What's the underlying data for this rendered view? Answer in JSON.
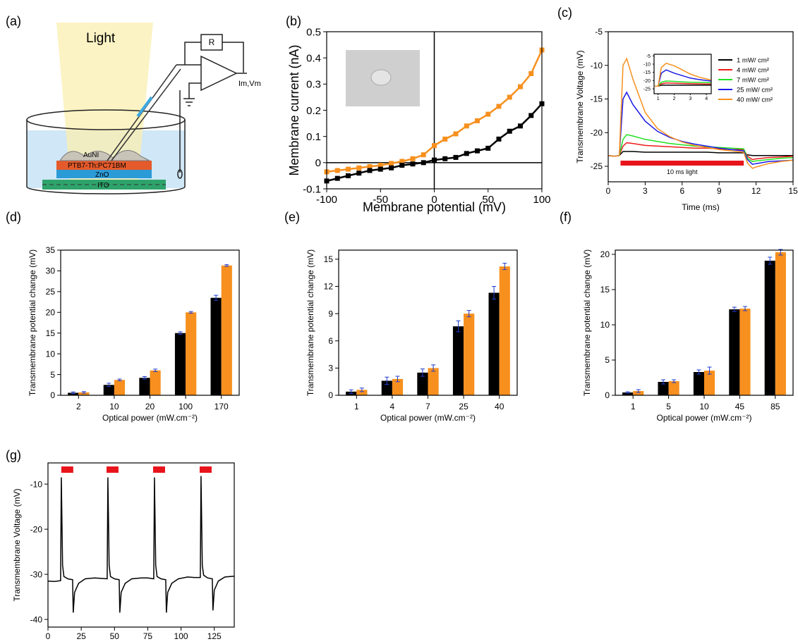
{
  "schematic": {
    "label": "(a)",
    "light": "Light",
    "resistor": "R",
    "output": "Im,Vm",
    "layers": [
      "AuNI",
      "PTB7-Th:PC71BM",
      "ZnO",
      "ITO"
    ]
  },
  "chart_data": [
    {
      "type": "line",
      "label": "(b)",
      "xlabel": "Membrane potential (mV)",
      "ylabel": "Membrane current (nA)",
      "xlim": [
        -100,
        100
      ],
      "ylim": [
        -0.1,
        0.5
      ],
      "xticks": [
        -100,
        -50,
        0,
        50,
        100
      ],
      "yticks": [
        -0.1,
        0.0,
        0.1,
        0.2,
        0.3,
        0.4,
        0.5
      ],
      "marker": "square",
      "x": [
        -100,
        -90,
        -80,
        -70,
        -60,
        -50,
        -40,
        -30,
        -20,
        -10,
        0,
        10,
        20,
        30,
        40,
        50,
        60,
        70,
        80,
        90,
        100
      ],
      "series": [
        {
          "color": "#f7901e",
          "values": [
            -0.035,
            -0.03,
            -0.025,
            -0.02,
            -0.015,
            -0.01,
            -0.003,
            0.005,
            0.015,
            0.03,
            0.065,
            0.09,
            0.11,
            0.14,
            0.16,
            0.185,
            0.215,
            0.25,
            0.29,
            0.34,
            0.43
          ]
        },
        {
          "color": "#000000",
          "values": [
            -0.07,
            -0.06,
            -0.05,
            -0.04,
            -0.03,
            -0.025,
            -0.02,
            -0.01,
            -0.005,
            0.0,
            0.01,
            0.015,
            0.02,
            0.035,
            0.045,
            0.055,
            0.09,
            0.12,
            0.14,
            0.18,
            0.225
          ]
        }
      ]
    },
    {
      "type": "line",
      "label": "(c)",
      "xlabel": "Time (ms)",
      "ylabel": "Transmembrane Voltage (mV)",
      "xlim": [
        0,
        15
      ],
      "ylim": [
        -27.3,
        -5
      ],
      "xticks": [
        0,
        3,
        6,
        9,
        12,
        15
      ],
      "yticks": [
        -25,
        -20,
        -15,
        -10,
        -5
      ],
      "legend": "upper right",
      "light_period": [
        1,
        11
      ],
      "light_label": "10 ms light",
      "light_color": "#e8141c",
      "x": [
        0,
        0.5,
        0.9,
        1.2,
        1.5,
        2,
        3,
        4,
        5,
        6,
        7,
        8,
        9,
        10,
        11,
        11.3,
        11.7,
        12,
        13,
        14,
        15
      ],
      "series": [
        {
          "name": "1 mW/ cm²",
          "color": "#000000",
          "values": [
            -23.4,
            -23.5,
            -23.4,
            -22.8,
            -22.8,
            -22.8,
            -22.9,
            -22.9,
            -22.9,
            -22.9,
            -22.9,
            -22.9,
            -23,
            -23,
            -23,
            -23.3,
            -23.4,
            -23.4,
            -23.4,
            -23.4,
            -23.4
          ]
        },
        {
          "name": "4 mW/ cm²",
          "color": "#ee1c1c",
          "values": [
            -23.4,
            -23.5,
            -23.4,
            -22,
            -21.5,
            -21.6,
            -21.9,
            -22,
            -22.1,
            -22.2,
            -22.3,
            -22.3,
            -22.4,
            -22.5,
            -22.5,
            -23.5,
            -24,
            -23.9,
            -23.7,
            -23.6,
            -23.5
          ]
        },
        {
          "name": "7 mW/ cm²",
          "color": "#22e022",
          "values": [
            -23.4,
            -23.5,
            -23.4,
            -21,
            -20.3,
            -20.5,
            -21,
            -21.3,
            -21.6,
            -21.8,
            -22,
            -22.1,
            -22.2,
            -22.3,
            -22.4,
            -23.8,
            -24.3,
            -24.2,
            -24,
            -23.8,
            -23.7
          ]
        },
        {
          "name": "25 mW/ cm²",
          "color": "#1a1ae6",
          "values": [
            -23.4,
            -23.5,
            -23.4,
            -15,
            -14,
            -15.8,
            -18.3,
            -19.8,
            -20.7,
            -21.3,
            -21.7,
            -22,
            -22.3,
            -22.5,
            -22.7,
            -24,
            -24.7,
            -24.6,
            -24.3,
            -24.2,
            -24.1
          ]
        },
        {
          "name": "40 mW/ cm²",
          "color": "#f7901e",
          "values": [
            -23.4,
            -23.5,
            -23.4,
            -10,
            -9,
            -12,
            -17,
            -19.4,
            -20.6,
            -21.4,
            -21.9,
            -22.2,
            -22.5,
            -22.7,
            -22.9,
            -24.5,
            -25.3,
            -25.1,
            -24.6,
            -24.3,
            -24.1
          ]
        }
      ]
    },
    {
      "type": "line",
      "xlim": [
        0.75,
        4.3
      ],
      "ylim": [
        -28,
        -4
      ],
      "xticks": [
        1,
        2,
        3,
        4
      ],
      "yticks": [
        -25,
        -20,
        -15,
        -10,
        -5
      ],
      "x": [
        0.8,
        1,
        1.2,
        1.5,
        2,
        2.5,
        3,
        3.5,
        4,
        4.3
      ],
      "series": [
        {
          "color": "#000000",
          "values": [
            -23.4,
            -23.4,
            -22.8,
            -22.8,
            -22.8,
            -22.8,
            -22.8,
            -22.8,
            -22.8,
            -22.8
          ]
        },
        {
          "color": "#ee1c1c",
          "values": [
            -23.4,
            -23.4,
            -22,
            -21.5,
            -21.6,
            -21.8,
            -21.9,
            -22,
            -22.1,
            -22.1
          ]
        },
        {
          "color": "#22e022",
          "values": [
            -23.4,
            -23.4,
            -21,
            -20.3,
            -20.5,
            -20.8,
            -21,
            -21.1,
            -21.2,
            -21.3
          ]
        },
        {
          "color": "#1a1ae6",
          "values": [
            -23.4,
            -23.4,
            -15.5,
            -13.5,
            -15.5,
            -17,
            -18.5,
            -19.3,
            -20,
            -20.3
          ]
        },
        {
          "color": "#f7901e",
          "values": [
            -23.4,
            -23.4,
            -12,
            -9.5,
            -11,
            -13.5,
            -16,
            -17.8,
            -19,
            -19.7
          ]
        }
      ]
    },
    {
      "type": "bar",
      "label": "(d)",
      "xlabel": "Optical power (mW.cm⁻²)",
      "ylabel": "Transmembrane potential change (mV)",
      "categories": [
        "2",
        "10",
        "20",
        "100",
        "170"
      ],
      "ylim": [
        0,
        35
      ],
      "yticks": [
        0,
        5,
        10,
        15,
        20,
        25,
        30,
        35
      ],
      "error_color": "#1f3bd1",
      "series": [
        {
          "color": "#000000",
          "values": [
            0.6,
            2.5,
            4.2,
            15,
            23.5
          ],
          "errors": [
            0.2,
            0.4,
            0.3,
            0.3,
            0.6
          ]
        },
        {
          "color": "#f7901e",
          "values": [
            0.7,
            3.7,
            6.0,
            20,
            31.3
          ],
          "errors": [
            0.2,
            0.2,
            0.3,
            0.2,
            0.2
          ]
        }
      ]
    },
    {
      "type": "bar",
      "label": "(e)",
      "xlabel": "Optical power (mW.cm⁻²)",
      "ylabel": "Transmembrane potential change (mV)",
      "categories": [
        "1",
        "4",
        "7",
        "25",
        "40"
      ],
      "ylim": [
        0,
        16
      ],
      "yticks": [
        0,
        3,
        6,
        9,
        12,
        15
      ],
      "error_color": "#1f3bd1",
      "series": [
        {
          "color": "#000000",
          "values": [
            0.4,
            1.6,
            2.5,
            7.6,
            11.3
          ],
          "errors": [
            0.2,
            0.4,
            0.4,
            0.6,
            0.7
          ]
        },
        {
          "color": "#f7901e",
          "values": [
            0.6,
            1.8,
            3.0,
            9.0,
            14.2
          ],
          "errors": [
            0.2,
            0.3,
            0.35,
            0.35,
            0.35
          ]
        }
      ]
    },
    {
      "type": "bar",
      "label": "(f)",
      "xlabel": "Optical power (mW.cm⁻²)",
      "ylabel": "Transmembrane potential change (mV)",
      "categories": [
        "1",
        "5",
        "10",
        "45",
        "85"
      ],
      "ylim": [
        0,
        20.6
      ],
      "yticks": [
        0,
        5,
        10,
        15,
        20
      ],
      "error_color": "#1f3bd1",
      "series": [
        {
          "color": "#000000",
          "values": [
            0.4,
            1.9,
            3.3,
            12.2,
            19.1
          ],
          "errors": [
            0.1,
            0.3,
            0.3,
            0.3,
            0.5
          ]
        },
        {
          "color": "#f7901e",
          "values": [
            0.6,
            2.0,
            3.5,
            12.3,
            20.3
          ],
          "errors": [
            0.2,
            0.2,
            0.5,
            0.3,
            0.4
          ]
        }
      ]
    },
    {
      "type": "line",
      "label": "(g)",
      "xlabel": "Time (ms)",
      "ylabel": "Transmembrane Voltage (mV)",
      "xlim": [
        0,
        140
      ],
      "ylim": [
        -41.7,
        -5.3
      ],
      "xticks": [
        0,
        25,
        50,
        75,
        100,
        125
      ],
      "yticks": [
        -40,
        -30,
        -20,
        -10
      ],
      "light_pulses": [
        [
          10,
          19
        ],
        [
          44,
          53
        ],
        [
          79,
          88
        ],
        [
          114,
          123
        ]
      ],
      "light_color": "#e8141c",
      "x": [
        0,
        5,
        9.5,
        10,
        11,
        12,
        15,
        18.5,
        19,
        20,
        23,
        28,
        35,
        40,
        44.5,
        45,
        46,
        47,
        50,
        53.5,
        54,
        55,
        58,
        63,
        70,
        75,
        79.5,
        80,
        81,
        82,
        85,
        88.5,
        89,
        90,
        93,
        98,
        105,
        110,
        114.5,
        115,
        116,
        117,
        120,
        123.5,
        124,
        125,
        128,
        133,
        140
      ],
      "series": [
        {
          "color": "#000000",
          "values": [
            -31.5,
            -31.6,
            -31.4,
            -8.5,
            -28,
            -30.5,
            -31,
            -31.2,
            -38.5,
            -34,
            -32,
            -31,
            -30.8,
            -30.9,
            -31,
            -8.5,
            -28,
            -30.5,
            -31,
            -31.2,
            -38.5,
            -34,
            -32,
            -31,
            -30.8,
            -30.8,
            -31,
            -8.5,
            -28,
            -30.5,
            -31,
            -31.2,
            -38.5,
            -34,
            -32,
            -31,
            -30.6,
            -30.7,
            -30.7,
            -8.2,
            -28,
            -30.2,
            -30.8,
            -31,
            -38,
            -33.5,
            -31.5,
            -30.6,
            -30.4
          ]
        }
      ]
    }
  ]
}
